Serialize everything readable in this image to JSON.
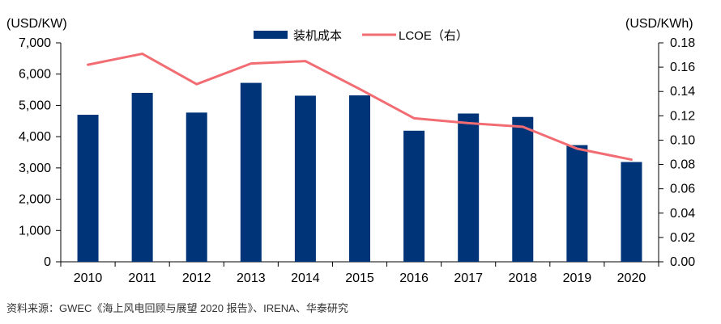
{
  "chart_data": {
    "type": "bar",
    "categories": [
      "2010",
      "2011",
      "2012",
      "2013",
      "2014",
      "2015",
      "2016",
      "2017",
      "2018",
      "2019",
      "2020"
    ],
    "series": [
      {
        "name": "装机成本",
        "chart_type": "bar",
        "axis": "left",
        "values": [
          4700,
          5400,
          4770,
          5720,
          5310,
          5320,
          4190,
          4740,
          4630,
          3730,
          3190
        ]
      },
      {
        "name": "LCOE（右）",
        "chart_type": "line",
        "axis": "right",
        "values": [
          0.162,
          0.171,
          0.146,
          0.163,
          0.165,
          0.142,
          0.118,
          0.114,
          0.111,
          0.093,
          0.084
        ]
      }
    ],
    "y_left": {
      "label": "(USD/KW)",
      "ylim": [
        0,
        7000
      ],
      "ticks": [
        "0",
        "1,000",
        "2,000",
        "3,000",
        "4,000",
        "5,000",
        "6,000",
        "7,000"
      ]
    },
    "y_right": {
      "label": "(USD/KWh)",
      "ylim": [
        0,
        0.18
      ],
      "ticks": [
        "0.00",
        "0.02",
        "0.04",
        "0.06",
        "0.08",
        "0.10",
        "0.12",
        "0.14",
        "0.16",
        "0.18"
      ]
    },
    "grid": false,
    "legend_position": "top-center",
    "colors": {
      "bar": "#003478",
      "line": "#F26D73",
      "axis": "#000000"
    },
    "source": "资料来源：GWEC《海上风电回顾与展望 2020 报告》、IRENA、华泰研究"
  }
}
